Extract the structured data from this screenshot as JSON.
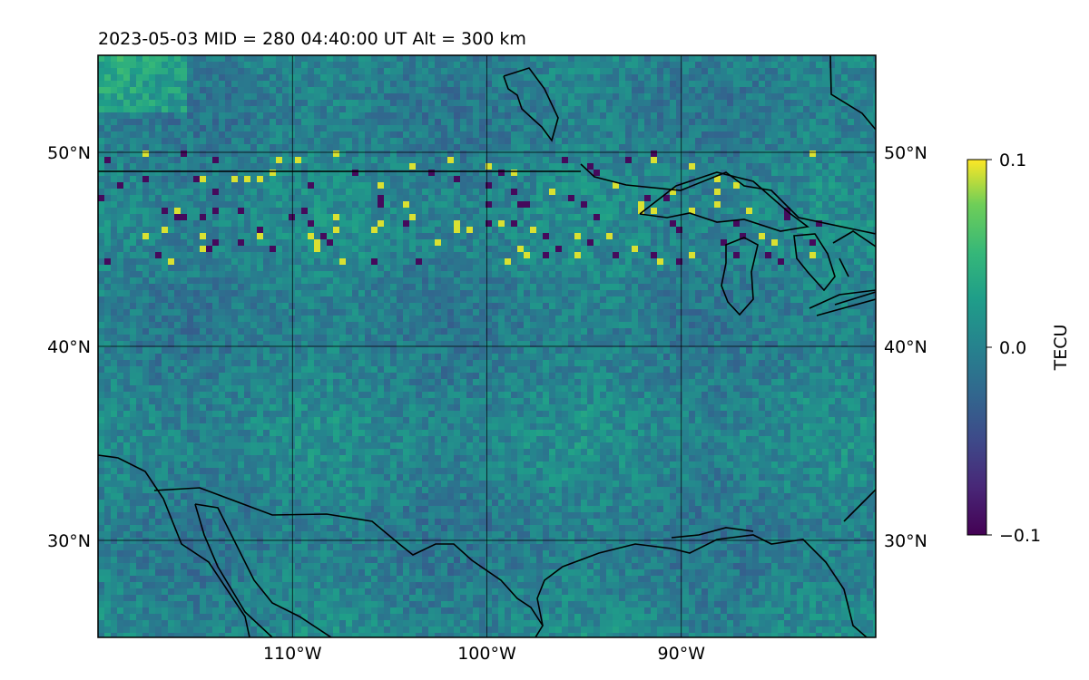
{
  "title": "2023-05-03  MID = 280    04:40:00  UT  Alt = 300 km",
  "map": {
    "type": "heatmap",
    "projection": "plate-carree",
    "lon_range": [
      -120,
      -80
    ],
    "lat_range": [
      25,
      55
    ],
    "grid": true,
    "lon_ticks": [
      {
        "lon": -110,
        "label": "110°W"
      },
      {
        "lon": -100,
        "label": "100°W"
      },
      {
        "lon": -90,
        "label": "90°W"
      }
    ],
    "lat_ticks": [
      {
        "lat": 50,
        "label": "50°N"
      },
      {
        "lat": 40,
        "label": "40°N"
      },
      {
        "lat": 30,
        "label": "30°N"
      }
    ],
    "features": [
      "coastlines",
      "country borders",
      "Great Lakes"
    ]
  },
  "colorbar": {
    "label": "TECU",
    "colormap": "viridis",
    "min": -0.1,
    "max": 0.1,
    "ticks": [
      {
        "value": 0.1,
        "label": "0.1"
      },
      {
        "value": 0.0,
        "label": "0.0"
      },
      {
        "value": -0.1,
        "label": "−0.1"
      }
    ]
  },
  "colors": {
    "background": "#ffffff",
    "field_base": "#2a8a8c",
    "high": "#fde725",
    "low": "#440154",
    "lines": "#000000"
  }
}
